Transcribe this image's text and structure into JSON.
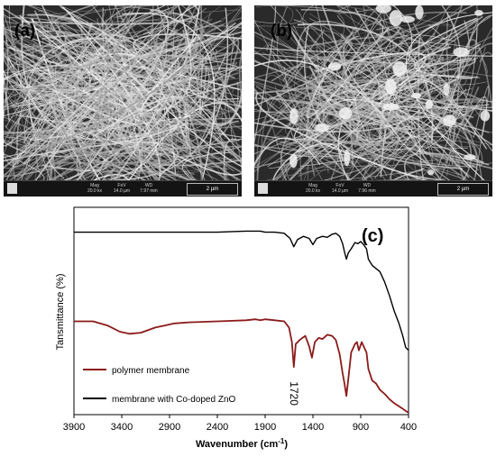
{
  "panels": [
    {
      "label": "(a)",
      "scale_bar": "2 µm",
      "info": [
        {
          "name": "Mag",
          "value": "20.0 kx"
        },
        {
          "name": "FoV",
          "value": "14.0 µm"
        },
        {
          "name": "WD",
          "value": "7.97 mm"
        }
      ]
    },
    {
      "label": "(b)",
      "scale_bar": "2 µm",
      "info": [
        {
          "name": "Mag",
          "value": "20.0 kx"
        },
        {
          "name": "FoV",
          "value": "14.0 µm"
        },
        {
          "name": "WD",
          "value": "7.96 mm"
        }
      ]
    }
  ],
  "chart_data": {
    "type": "line",
    "panel_label": "(c)",
    "xlabel": "Wavenumber (cm",
    "xlabel_sup": "-1",
    "xlabel_end": ")",
    "ylabel": "Tansmittance (%)",
    "xlim": [
      3900,
      400
    ],
    "x_reversed": true,
    "xticks": [
      3900,
      3400,
      2900,
      2400,
      1900,
      1400,
      900,
      400
    ],
    "annotation": {
      "text": "1720",
      "x": 1600
    },
    "legend": {
      "placement": "bottom-left"
    },
    "series": [
      {
        "name": "polymer membrane",
        "color": "#8b1a1a",
        "x": [
          3900,
          3700,
          3550,
          3420,
          3320,
          3200,
          3050,
          2950,
          2850,
          2700,
          2400,
          2100,
          2000,
          1950,
          1900,
          1800,
          1700,
          1650,
          1620,
          1600,
          1580,
          1540,
          1480,
          1440,
          1410,
          1380,
          1340,
          1300,
          1250,
          1200,
          1160,
          1120,
          1090,
          1070,
          1050,
          1030,
          1000,
          960,
          940,
          920,
          890,
          860,
          840,
          820,
          780,
          740,
          700,
          650,
          600,
          550,
          500,
          450,
          420,
          400
        ],
        "y": [
          90,
          90,
          86,
          80,
          78,
          79,
          84,
          86,
          88,
          89,
          90,
          91,
          92,
          91,
          92,
          91,
          90,
          84,
          70,
          46,
          68,
          72,
          76,
          66,
          55,
          70,
          74,
          73,
          77,
          76,
          72,
          58,
          40,
          30,
          18,
          34,
          60,
          68,
          70,
          62,
          70,
          64,
          60,
          44,
          33,
          30,
          24,
          20,
          15,
          11,
          8,
          5,
          3,
          2
        ]
      },
      {
        "name": "membrane with Co-doped ZnO",
        "color": "#000000",
        "x": [
          3900,
          3600,
          3300,
          3000,
          2700,
          2400,
          2100,
          1950,
          1900,
          1800,
          1700,
          1640,
          1600,
          1560,
          1500,
          1440,
          1400,
          1360,
          1300,
          1250,
          1200,
          1160,
          1120,
          1090,
          1070,
          1050,
          1030,
          1000,
          960,
          930,
          900,
          870,
          840,
          820,
          780,
          740,
          700,
          650,
          600,
          550,
          500,
          460,
          430,
          400
        ],
        "y": [
          176,
          176,
          176,
          176,
          176,
          176,
          177,
          177,
          176,
          176,
          175,
          170,
          162,
          169,
          172,
          170,
          164,
          170,
          172,
          171,
          174,
          175,
          172,
          165,
          157,
          150,
          156,
          160,
          166,
          165,
          167,
          164,
          160,
          150,
          144,
          141,
          138,
          128,
          115,
          100,
          88,
          76,
          65,
          62
        ]
      }
    ],
    "ylim": [
      0,
      200
    ],
    "grid": false
  }
}
